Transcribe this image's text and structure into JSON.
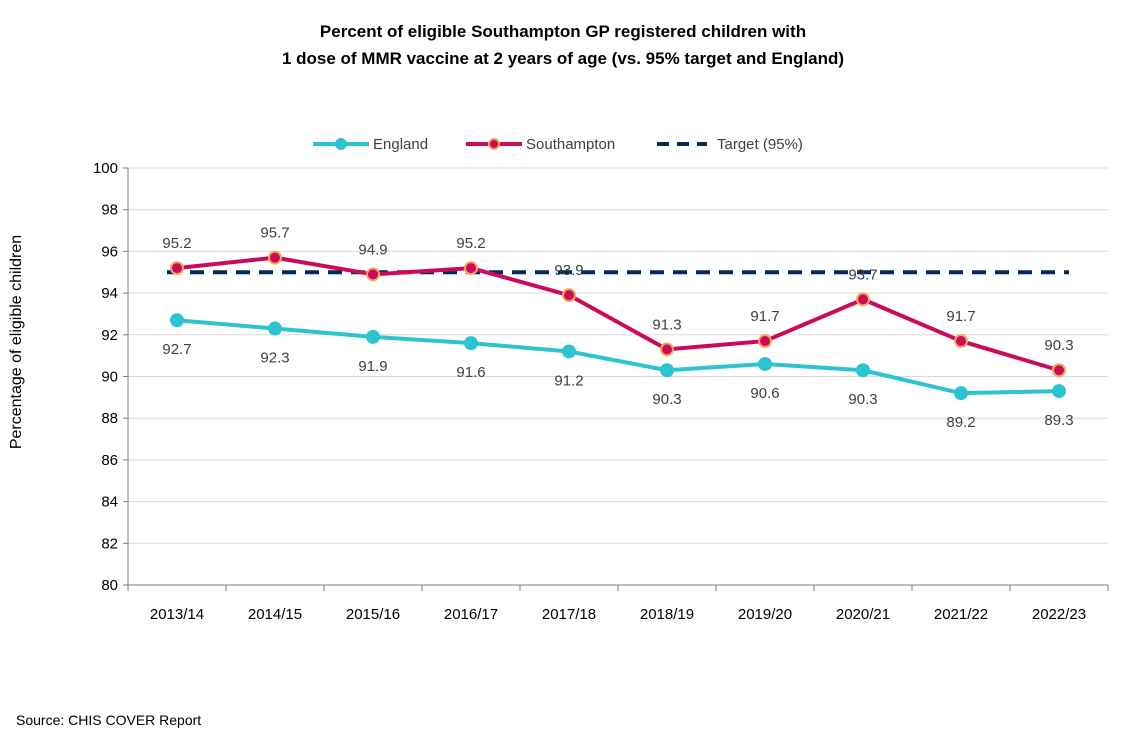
{
  "chart_data": {
    "type": "line",
    "title_lines": [
      "Percent of eligible Southampton GP registered children with",
      "1 dose of MMR vaccine at 2 years of age (vs. 95% target and England)"
    ],
    "categories": [
      "2013/14",
      "2014/15",
      "2015/16",
      "2016/17",
      "2017/18",
      "2018/19",
      "2019/20",
      "2020/21",
      "2021/22",
      "2022/23"
    ],
    "ylabel": "Percentage of eligible children",
    "xlabel": "",
    "ylim": [
      80,
      100
    ],
    "ytick_step": 2,
    "grid": true,
    "legend_position": "top",
    "series": [
      {
        "name": "England",
        "color": "#2BC4CF",
        "marker_fill": "#2BC4CF",
        "marker_stroke": "#2BC4CF",
        "line_style": "solid",
        "label_position": "below",
        "values": [
          92.7,
          92.3,
          91.9,
          91.6,
          91.2,
          90.3,
          90.6,
          90.3,
          89.2,
          89.3
        ]
      },
      {
        "name": "Southampton",
        "color": "#CC0A5A",
        "marker_fill": "#CC0A5A",
        "marker_stroke": "#F4A85A",
        "line_style": "solid",
        "label_position": "above",
        "values": [
          95.2,
          95.7,
          94.9,
          95.2,
          93.9,
          91.3,
          91.7,
          93.7,
          91.7,
          90.3
        ]
      },
      {
        "name": "Target (95%)",
        "color": "#002A5C",
        "line_style": "dashed",
        "values": [
          95,
          95,
          95,
          95,
          95,
          95,
          95,
          95,
          95,
          95
        ]
      }
    ],
    "source": "Source: CHIS COVER Report"
  }
}
